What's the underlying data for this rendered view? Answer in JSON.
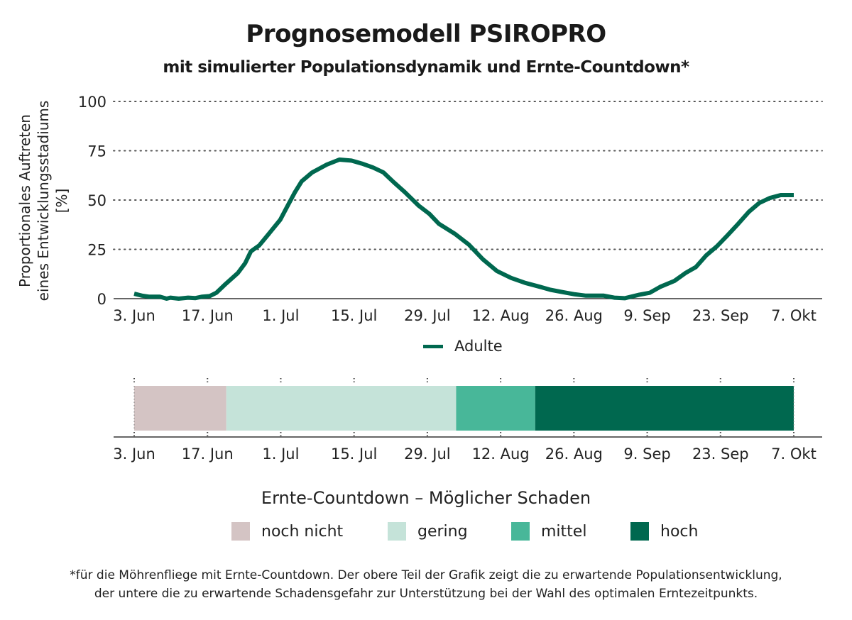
{
  "header": {
    "title": "Prognosemodell PSIROPRO",
    "subtitle": "mit simulierter Populationsdynamik und Ernte-Countdown*"
  },
  "chart_data": [
    {
      "type": "line",
      "title": "Prognosemodell PSIROPRO",
      "ylabel_lines": [
        "Proportionales Auftreten",
        "eines Entwicklungsstadiums",
        "[%]"
      ],
      "xlabel": "",
      "ylim": [
        0,
        100
      ],
      "yticks": [
        "0",
        "25",
        "50",
        "75",
        "100"
      ],
      "ytick_values": [
        0,
        25,
        50,
        75,
        100
      ],
      "xlim_days": [
        0,
        126
      ],
      "xticks": [
        "3. Jun",
        "17. Jun",
        "1. Jul",
        "15. Jul",
        "29. Jul",
        "12. Aug",
        "26. Aug",
        "9. Sep",
        "23. Sep",
        "7. Okt"
      ],
      "xtick_days": [
        0,
        14,
        28,
        42,
        56,
        70,
        84,
        98,
        112,
        126
      ],
      "grid": "horizontal-dotted",
      "legend_placement": "bottom",
      "series": [
        {
          "name": "Adulte",
          "color": "#00684f",
          "x_days": [
            0,
            1.5,
            2.8,
            4.9,
            6.2,
            6.9,
            8.5,
            10.3,
            11.7,
            13.0,
            14.4,
            15.7,
            17.5,
            19.8,
            21.2,
            22.3,
            23.9,
            25.9,
            27.9,
            29.3,
            30.7,
            32.0,
            34.0,
            36.8,
            39.2,
            41.5,
            43.5,
            45.6,
            47.6,
            49.6,
            51.7,
            54.4,
            56.4,
            58.2,
            61.2,
            63.9,
            66.6,
            69.3,
            72.0,
            74.7,
            77.5,
            79.5,
            81.5,
            84.2,
            86.3,
            89.7,
            91.7,
            93.7,
            96.5,
            98.5,
            100.5,
            103.2,
            105.3,
            107.3,
            109.3,
            111.3,
            113.3,
            115.4,
            117.4,
            119.4,
            121.4,
            123.5,
            126.0
          ],
          "values": [
            2.5,
            1.5,
            1,
            1,
            0,
            0.5,
            0,
            0.5,
            0.3,
            1,
            1.3,
            3,
            7.5,
            13,
            18,
            24,
            27,
            33.5,
            40,
            47,
            54,
            59.5,
            64,
            68,
            70.5,
            70,
            68.5,
            66.5,
            64,
            59,
            54,
            47,
            43,
            38,
            33,
            27.5,
            20,
            14,
            10.5,
            8,
            6,
            4.5,
            3.5,
            2.2,
            1.5,
            1.5,
            0.5,
            0.2,
            2,
            3,
            6,
            9,
            13,
            16,
            22,
            26.5,
            32,
            38,
            44,
            48.5,
            51,
            52.5,
            52.5
          ]
        }
      ]
    },
    {
      "type": "bar",
      "subtype": "timeline-segments",
      "xticks": [
        "3. Jun",
        "17. Jun",
        "1. Jul",
        "15. Jul",
        "29. Jul",
        "12. Aug",
        "26. Aug",
        "9. Sep",
        "23. Sep",
        "7. Okt"
      ],
      "xtick_days": [
        0,
        14,
        28,
        42,
        56,
        70,
        84,
        98,
        112,
        126
      ],
      "xlim_days": [
        0,
        126
      ],
      "legend_title": "Ernte-Countdown – Möglicher Schaden",
      "legend_placement": "bottom",
      "segments": [
        {
          "name": "noch nicht",
          "start_day": 0,
          "end_day": 17.6,
          "color": "#d4c4c4"
        },
        {
          "name": "gering",
          "start_day": 17.6,
          "end_day": 61.5,
          "color": "#c5e3d9"
        },
        {
          "name": "mittel",
          "start_day": 61.5,
          "end_day": 76.6,
          "color": "#48b799"
        },
        {
          "name": "hoch",
          "start_day": 76.6,
          "end_day": 126,
          "color": "#00684f"
        }
      ]
    }
  ],
  "footnote": {
    "line1": "*für die Möhrenfliege mit Ernte-Countdown. Der obere Teil der Grafik zeigt die zu erwartende Populationsentwicklung,",
    "line2": "der untere die zu erwartende Schadensgefahr zur Unterstützung bei der Wahl des optimalen Erntezeitpunkts."
  }
}
